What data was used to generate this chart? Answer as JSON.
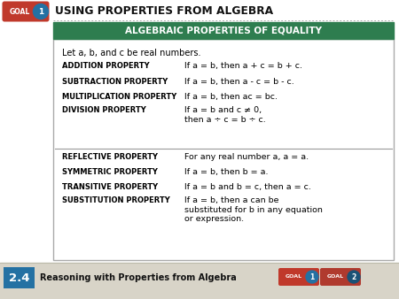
{
  "title": "USING PROPERTIES FROM ALGEBRA",
  "goal_label": "GOAL",
  "goal_number": "1",
  "section_number": "2.4",
  "section_title": "Reasoning with Properties from Algebra",
  "box_title": "ALGEBRAIC PROPERTIES OF EQUALITY",
  "intro_text": "Let a, b, and c be real numbers.",
  "properties": [
    {
      "name": "ADDITION PROPERTY",
      "description": "If a = b, then a + c = b + c."
    },
    {
      "name": "SUBTRACTION PROPERTY",
      "description": "If a = b, then a - c = b - c."
    },
    {
      "name": "MULTIPLICATION PROPERTY",
      "description": "If a = b, then ac = bc."
    },
    {
      "name": "DIVISION PROPERTY",
      "description": "If a = b and c ≠ 0,\nthen a ÷ c = b ÷ c."
    }
  ],
  "properties2": [
    {
      "name": "REFLECTIVE PROPERTY",
      "description": "For any real number a, a = a."
    },
    {
      "name": "SYMMETRIC PROPERTY",
      "description": "If a = b, then b = a."
    },
    {
      "name": "TRANSITIVE PROPERTY",
      "description": "If a = b and b = c, then a = c."
    },
    {
      "name": "SUBSTITUTION PROPERTY",
      "description": "If a = b, then a can be\nsubstituted for b in any equation\nor expression."
    }
  ],
  "white_bg": "#ffffff",
  "light_gray_bg": "#d8d4c8",
  "green_header_bg": "#2e7d4f",
  "green_header_text": "#ffffff",
  "goal_red_bg": "#c0392b",
  "goal_blue_bg": "#2471a3",
  "goal2_red_bg": "#b03a2e",
  "section_num_bg": "#2471a3",
  "footer_bg": "#d8d4c8",
  "divider_color": "#999999",
  "box_border_color": "#aaaaaa"
}
